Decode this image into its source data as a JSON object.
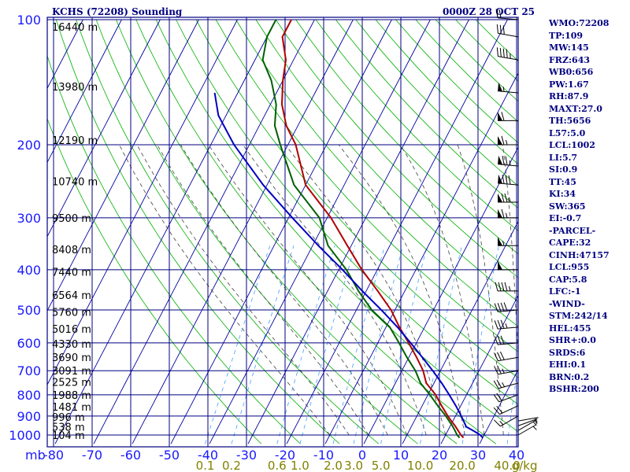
{
  "header": {
    "title": "KCHS (72208) Sounding",
    "valid_time": "0000Z 28 OCT 25"
  },
  "indices": [
    "WMO:72208",
    "TP:109",
    "MW:145",
    "FRZ:643",
    "WB0:656",
    "PW:1.67",
    "RH:87.9",
    "MAXT:27.0",
    "TH:5656",
    "L57:5.0",
    "LCL:1002",
    "LI:5.7",
    "SI:0.9",
    "TT:45",
    "KI:34",
    "SW:365",
    "EI:-0.7",
    "-PARCEL-",
    "CAPE:32",
    "CINH:47157",
    "LCL:955",
    "CAP:5.8",
    "LFC:-1",
    "-WIND-",
    "STM:242/14",
    "HEL:455",
    "SHR+:0.0",
    "SRDS:6",
    "EHI:0.1",
    "BRN:0.2",
    "BSHR:200"
  ],
  "colors": {
    "grid": "#000080",
    "isotherm": "#0000a0",
    "dry_adiabat": "#00b000",
    "moist_adiabat": "#404040",
    "mixing_ratio": "#40a0ff",
    "temperature": "#b00000",
    "dewpoint": "#006000",
    "parcel": "#0000c0",
    "wind_barb": "#000000"
  },
  "chart_data": {
    "type": "skew-t log-p",
    "y_unit_label": "mb",
    "pressure_levels": [
      100,
      200,
      300,
      400,
      500,
      600,
      700,
      800,
      900,
      1000
    ],
    "pressure_range": [
      1050,
      100
    ],
    "temperature_ticks": [
      -80,
      -70,
      -60,
      -50,
      -40,
      -30,
      -20,
      -10,
      0,
      10,
      20,
      30,
      40
    ],
    "temperature_range": [
      -80,
      40
    ],
    "mixing_ratio_labels": [
      "0.1",
      "0.2",
      "0.6",
      "1.0",
      "2.0",
      "3.0",
      "5.0",
      "10.0",
      "20.0",
      "40.0",
      "g/kg"
    ],
    "mixing_ratio_values": [
      0.1,
      0.2,
      0.6,
      1.0,
      2.0,
      3.0,
      5.0,
      10.0,
      20.0,
      40.0
    ],
    "height_labels": [
      {
        "p": 104,
        "label": "16440 m"
      },
      {
        "p": 145,
        "label": "13980 m"
      },
      {
        "p": 195,
        "label": "12190 m"
      },
      {
        "p": 245,
        "label": "10740 m"
      },
      {
        "p": 300,
        "label": "9500 m"
      },
      {
        "p": 357,
        "label": "8408 m"
      },
      {
        "p": 405,
        "label": "7440 m"
      },
      {
        "p": 460,
        "label": "6564 m"
      },
      {
        "p": 505,
        "label": "5760 m"
      },
      {
        "p": 555,
        "label": "5016 m"
      },
      {
        "p": 603,
        "label": "4330 m"
      },
      {
        "p": 650,
        "label": "3690 m"
      },
      {
        "p": 700,
        "label": "3091 m"
      },
      {
        "p": 745,
        "label": "2525 m"
      },
      {
        "p": 800,
        "label": "1988 m"
      },
      {
        "p": 855,
        "label": "1481 m"
      },
      {
        "p": 905,
        "label": "996 m"
      },
      {
        "p": 955,
        "label": "538 m"
      },
      {
        "p": 1000,
        "label": "104 m"
      }
    ],
    "series": [
      {
        "key": "temperature",
        "points": [
          [
            1015,
            25.0
          ],
          [
            1000,
            24.0
          ],
          [
            975,
            22.6
          ],
          [
            950,
            21.2
          ],
          [
            925,
            19.6
          ],
          [
            900,
            18.0
          ],
          [
            850,
            15.0
          ],
          [
            800,
            12.0
          ],
          [
            750,
            8.0
          ],
          [
            700,
            5.5
          ],
          [
            650,
            2.0
          ],
          [
            600,
            -2.0
          ],
          [
            550,
            -6.5
          ],
          [
            500,
            -11.0
          ],
          [
            450,
            -17.0
          ],
          [
            400,
            -24.0
          ],
          [
            350,
            -31.0
          ],
          [
            300,
            -39.0
          ],
          [
            250,
            -50.0
          ],
          [
            200,
            -58.0
          ],
          [
            180,
            -63.0
          ],
          [
            160,
            -67.0
          ],
          [
            140,
            -70.0
          ],
          [
            125,
            -72.0
          ],
          [
            110,
            -76.0
          ],
          [
            104,
            -76.0
          ],
          [
            100,
            -76.0
          ]
        ]
      },
      {
        "key": "dewpoint",
        "points": [
          [
            1015,
            24.0
          ],
          [
            1000,
            23.0
          ],
          [
            975,
            21.8
          ],
          [
            950,
            20.5
          ],
          [
            925,
            19.0
          ],
          [
            900,
            17.5
          ],
          [
            850,
            14.0
          ],
          [
            800,
            10.5
          ],
          [
            750,
            6.5
          ],
          [
            700,
            3.5
          ],
          [
            650,
            -0.5
          ],
          [
            600,
            -4.5
          ],
          [
            550,
            -9.0
          ],
          [
            500,
            -16.0
          ],
          [
            450,
            -22.0
          ],
          [
            400,
            -28.0
          ],
          [
            350,
            -36.0
          ],
          [
            300,
            -42.0
          ],
          [
            250,
            -53.0
          ],
          [
            200,
            -62.0
          ],
          [
            180,
            -66.0
          ],
          [
            160,
            -68.5
          ],
          [
            140,
            -73.0
          ],
          [
            125,
            -78.0
          ],
          [
            110,
            -80.0
          ],
          [
            100,
            -80.0
          ]
        ]
      },
      {
        "key": "parcel",
        "points": [
          [
            1015,
            30.0
          ],
          [
            1000,
            29.0
          ],
          [
            980,
            27.0
          ],
          [
            955,
            24.2
          ],
          [
            950,
            24.0
          ],
          [
            900,
            21.5
          ],
          [
            850,
            18.7
          ],
          [
            800,
            15.5
          ],
          [
            750,
            12.0
          ],
          [
            700,
            8.0
          ],
          [
            650,
            3.5
          ],
          [
            600,
            -1.5
          ],
          [
            550,
            -7.0
          ],
          [
            500,
            -13.5
          ],
          [
            450,
            -21.0
          ],
          [
            400,
            -29.0
          ],
          [
            350,
            -38.5
          ],
          [
            300,
            -49.0
          ],
          [
            250,
            -61.0
          ],
          [
            200,
            -74.0
          ],
          [
            170,
            -82.0
          ],
          [
            150,
            -86.0
          ]
        ]
      }
    ],
    "wind_barbs": [
      {
        "p": 1000,
        "dir": 60,
        "spd": 5
      },
      {
        "p": 975,
        "dir": 60,
        "spd": 5
      },
      {
        "p": 950,
        "dir": 70,
        "spd": 5
      },
      {
        "p": 925,
        "dir": 80,
        "spd": 5
      },
      {
        "p": 900,
        "dir": 240,
        "spd": 15
      },
      {
        "p": 850,
        "dir": 245,
        "spd": 20
      },
      {
        "p": 800,
        "dir": 250,
        "spd": 20
      },
      {
        "p": 750,
        "dir": 255,
        "spd": 25
      },
      {
        "p": 700,
        "dir": 260,
        "spd": 25
      },
      {
        "p": 650,
        "dir": 260,
        "spd": 30
      },
      {
        "p": 600,
        "dir": 265,
        "spd": 30
      },
      {
        "p": 550,
        "dir": 265,
        "spd": 35
      },
      {
        "p": 500,
        "dir": 265,
        "spd": 40
      },
      {
        "p": 450,
        "dir": 270,
        "spd": 45
      },
      {
        "p": 400,
        "dir": 270,
        "spd": 50
      },
      {
        "p": 350,
        "dir": 270,
        "spd": 55
      },
      {
        "p": 300,
        "dir": 270,
        "spd": 65
      },
      {
        "p": 275,
        "dir": 270,
        "spd": 75
      },
      {
        "p": 250,
        "dir": 275,
        "spd": 80
      },
      {
        "p": 225,
        "dir": 275,
        "spd": 75
      },
      {
        "p": 200,
        "dir": 270,
        "spd": 65
      },
      {
        "p": 175,
        "dir": 270,
        "spd": 60
      },
      {
        "p": 150,
        "dir": 275,
        "spd": 55
      },
      {
        "p": 125,
        "dir": 280,
        "spd": 45
      },
      {
        "p": 110,
        "dir": 280,
        "spd": 30
      },
      {
        "p": 100,
        "dir": 275,
        "spd": 20
      }
    ]
  }
}
